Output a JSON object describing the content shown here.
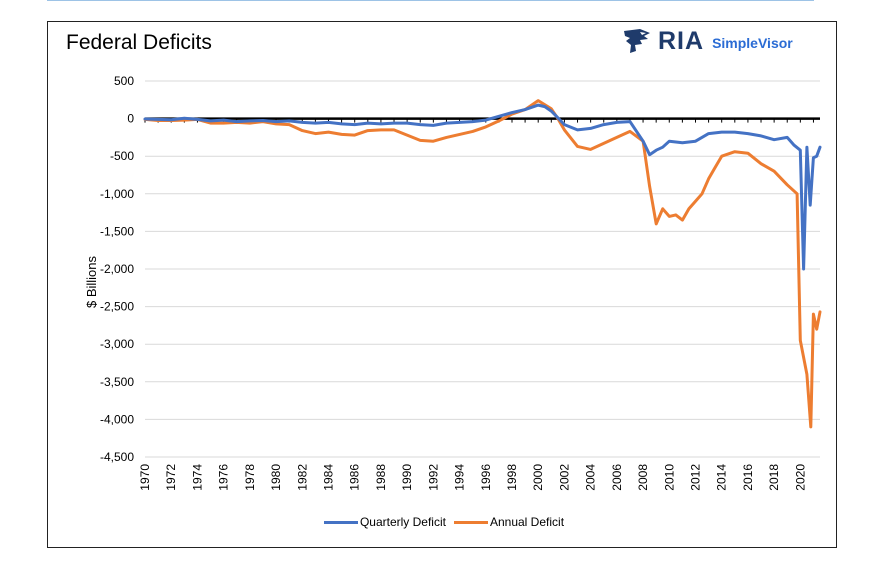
{
  "chart_data": {
    "type": "line",
    "title": "Federal Deficits",
    "xlabel": "",
    "ylabel": "$ Billions",
    "xlim": [
      1970,
      2021.5
    ],
    "ylim": [
      -4500,
      500
    ],
    "yticks": [
      500,
      0,
      -500,
      -1000,
      -1500,
      -2000,
      -2500,
      -3000,
      -3500,
      -4000,
      -4500
    ],
    "ytick_labels": [
      "500",
      "0",
      "-500",
      "-1,000",
      "-1,500",
      "-2,000",
      "-2,500",
      "-3,000",
      "-3,500",
      "-4,000",
      "-4,500"
    ],
    "xticks": [
      1970,
      1972,
      1974,
      1976,
      1978,
      1980,
      1982,
      1984,
      1986,
      1988,
      1990,
      1992,
      1994,
      1996,
      1998,
      2000,
      2002,
      2004,
      2006,
      2008,
      2010,
      2012,
      2014,
      2016,
      2018,
      2020
    ],
    "xtick_labels": [
      "1970",
      "1972",
      "1974",
      "1976",
      "1978",
      "1980",
      "1982",
      "1984",
      "1986",
      "1988",
      "1990",
      "1992",
      "1994",
      "1996",
      "1998",
      "2000",
      "2002",
      "2004",
      "2006",
      "2008",
      "2010",
      "2012",
      "2014",
      "2016",
      "2018",
      "2020"
    ],
    "grid": true,
    "legend_position": "bottom",
    "series": [
      {
        "name": "Quarterly Deficit",
        "color": "#4472c4",
        "x": [
          1970,
          1971,
          1972,
          1973,
          1974,
          1975,
          1976,
          1977,
          1978,
          1979,
          1980,
          1981,
          1982,
          1983,
          1984,
          1985,
          1986,
          1987,
          1988,
          1989,
          1990,
          1991,
          1992,
          1993,
          1994,
          1995,
          1996,
          1997,
          1998,
          1999,
          2000,
          2000.5,
          2001,
          2001.5,
          2002,
          2003,
          2004,
          2005,
          2006,
          2007,
          2008,
          2008.5,
          2009,
          2009.5,
          2010,
          2011,
          2012,
          2013,
          2014,
          2015,
          2016,
          2017,
          2018,
          2019,
          2019.5,
          2020,
          2020.25,
          2020.5,
          2020.75,
          2021,
          2021.25,
          2021.5
        ],
        "y": [
          -5,
          -10,
          -15,
          5,
          -10,
          -30,
          -20,
          -40,
          -30,
          -25,
          -40,
          -30,
          -50,
          -60,
          -50,
          -70,
          -80,
          -60,
          -70,
          -60,
          -60,
          -80,
          -90,
          -60,
          -50,
          -40,
          -20,
          30,
          80,
          120,
          180,
          160,
          100,
          10,
          -80,
          -150,
          -130,
          -80,
          -50,
          -40,
          -300,
          -480,
          -420,
          -380,
          -300,
          -320,
          -300,
          -200,
          -180,
          -180,
          -200,
          -230,
          -280,
          -250,
          -350,
          -420,
          -2000,
          -380,
          -1150,
          -520,
          -500,
          -380
        ]
      },
      {
        "name": "Annual Deficit",
        "color": "#ed7d31",
        "x": [
          1970,
          1971,
          1972,
          1973,
          1974,
          1975,
          1976,
          1977,
          1978,
          1979,
          1980,
          1981,
          1982,
          1983,
          1984,
          1985,
          1986,
          1987,
          1988,
          1989,
          1990,
          1991,
          1992,
          1993,
          1994,
          1995,
          1996,
          1997,
          1998,
          1999,
          2000,
          2001,
          2001.5,
          2002,
          2003,
          2004,
          2005,
          2006,
          2007,
          2008,
          2008.5,
          2009,
          2009.5,
          2010,
          2010.5,
          2011,
          2011.5,
          2012,
          2012.5,
          2013,
          2013.5,
          2014,
          2015,
          2016,
          2017,
          2018,
          2019,
          2019.75,
          2020,
          2020.5,
          2020.8,
          2021,
          2021.25,
          2021.5
        ],
        "y": [
          -10,
          -25,
          -25,
          -20,
          -10,
          -60,
          -60,
          -50,
          -60,
          -40,
          -70,
          -80,
          -160,
          -200,
          -180,
          -210,
          -220,
          -160,
          -150,
          -150,
          -220,
          -290,
          -300,
          -250,
          -210,
          -170,
          -110,
          -30,
          60,
          120,
          240,
          130,
          0,
          -150,
          -370,
          -410,
          -330,
          -250,
          -170,
          -300,
          -900,
          -1400,
          -1200,
          -1300,
          -1280,
          -1350,
          -1200,
          -1100,
          -1000,
          -800,
          -650,
          -500,
          -440,
          -460,
          -600,
          -700,
          -880,
          -1000,
          -2950,
          -3400,
          -4100,
          -2600,
          -2800,
          -2570
        ]
      }
    ]
  },
  "logo": {
    "brand": "RIA",
    "product": "SimpleVisor",
    "icon": "eagle-head-icon",
    "brand_color": "#1f3b6b",
    "product_color": "#2b6cd4"
  }
}
